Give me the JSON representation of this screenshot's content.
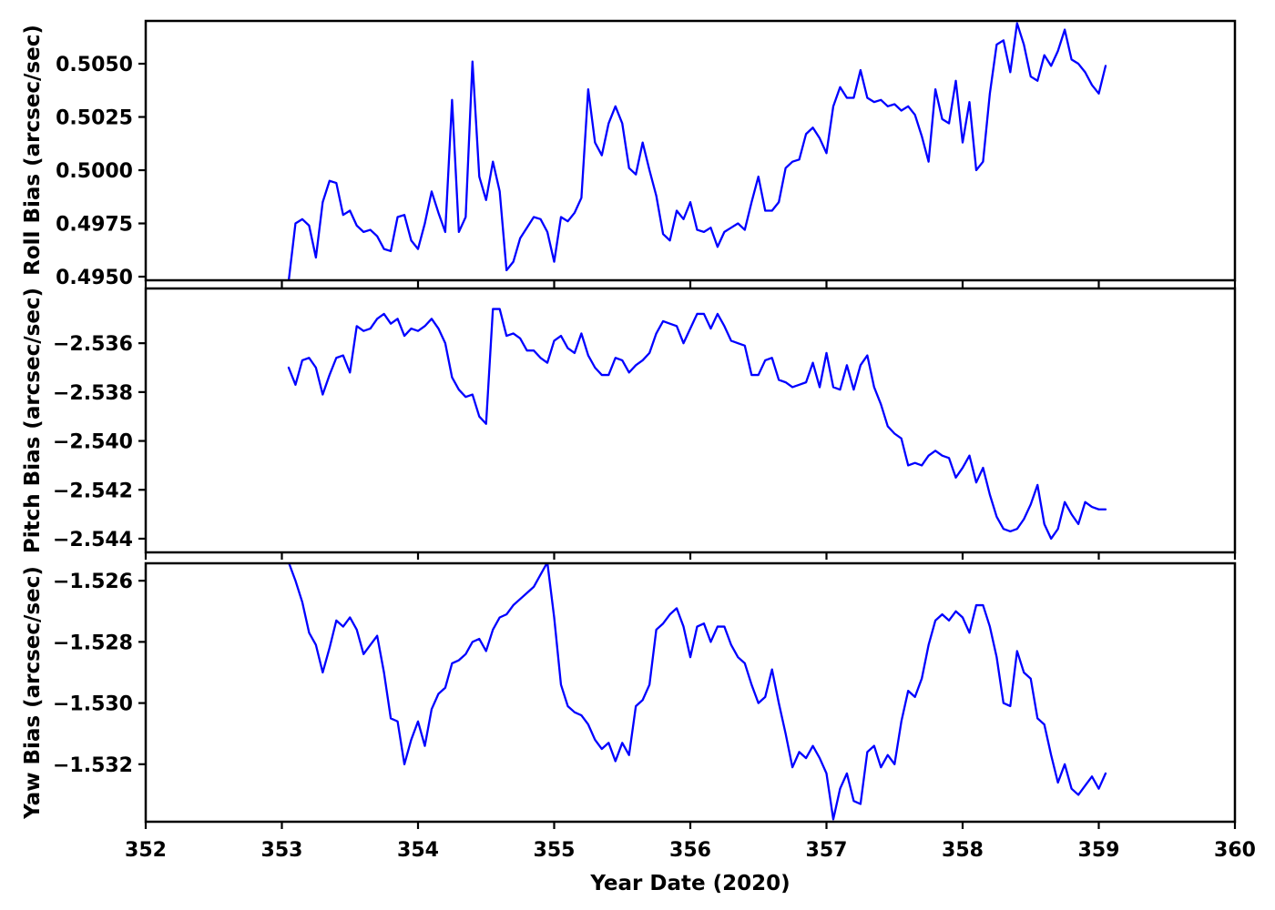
{
  "chart_data": {
    "type": "line",
    "title": "",
    "x_label": "Year Date (2020)",
    "xlim": [
      352,
      360
    ],
    "x_ticks": [
      352,
      353,
      354,
      355,
      356,
      357,
      358,
      359,
      360
    ],
    "x_tick_labels": [
      "352",
      "353",
      "354",
      "355",
      "356",
      "357",
      "358",
      "359",
      "360"
    ],
    "grid": false,
    "legend": "none",
    "line_color": "#0000ff",
    "axis_color": "#000000",
    "background_color": "#ffffff",
    "x": [
      353.05,
      353.1,
      353.15,
      353.2,
      353.25,
      353.3,
      353.35,
      353.4,
      353.45,
      353.5,
      353.55,
      353.6,
      353.65,
      353.7,
      353.75,
      353.8,
      353.85,
      353.9,
      353.95,
      354.0,
      354.05,
      354.1,
      354.15,
      354.2,
      354.25,
      354.3,
      354.35,
      354.4,
      354.45,
      354.5,
      354.55,
      354.6,
      354.65,
      354.7,
      354.75,
      354.8,
      354.85,
      354.9,
      354.95,
      355.0,
      355.05,
      355.1,
      355.15,
      355.2,
      355.25,
      355.3,
      355.35,
      355.4,
      355.45,
      355.5,
      355.55,
      355.6,
      355.65,
      355.7,
      355.75,
      355.8,
      355.85,
      355.9,
      355.95,
      356.0,
      356.05,
      356.1,
      356.15,
      356.2,
      356.25,
      356.3,
      356.35,
      356.4,
      356.45,
      356.5,
      356.55,
      356.6,
      356.65,
      356.7,
      356.75,
      356.8,
      356.85,
      356.9,
      356.95,
      357.0,
      357.05,
      357.1,
      357.15,
      357.2,
      357.25,
      357.3,
      357.35,
      357.4,
      357.45,
      357.5,
      357.55,
      357.6,
      357.65,
      357.7,
      357.75,
      357.8,
      357.85,
      357.9,
      357.95,
      358.0,
      358.05,
      358.1,
      358.15,
      358.2,
      358.25,
      358.3,
      358.35,
      358.4,
      358.45,
      358.5,
      358.55,
      358.6,
      358.65,
      358.7,
      358.75,
      358.8,
      358.85,
      358.9,
      358.95,
      359.0,
      359.05
    ],
    "panels": [
      {
        "id": "roll",
        "ylabel": "Roll Bias (arcsec/sec)",
        "ylim": [
          0.49483,
          0.50701
        ],
        "y_ticks": [
          0.505,
          0.5025,
          0.5,
          0.4975,
          0.495
        ],
        "y_tick_labels": [
          "0.5050",
          "0.5025",
          "0.5000",
          "0.4975",
          "0.4950"
        ],
        "values": [
          0.4948,
          0.4975,
          0.4977,
          0.4974,
          0.4959,
          0.4985,
          0.4995,
          0.4994,
          0.4979,
          0.4981,
          0.4974,
          0.4971,
          0.4972,
          0.4969,
          0.4963,
          0.4962,
          0.4978,
          0.4979,
          0.4967,
          0.4963,
          0.4975,
          0.499,
          0.498,
          0.4971,
          0.5033,
          0.4971,
          0.4978,
          0.5051,
          0.4997,
          0.4986,
          0.5004,
          0.499,
          0.4953,
          0.4957,
          0.4968,
          0.4973,
          0.4978,
          0.4977,
          0.4971,
          0.4957,
          0.4978,
          0.4976,
          0.498,
          0.4987,
          0.5038,
          0.5013,
          0.5007,
          0.5022,
          0.503,
          0.5022,
          0.5001,
          0.4998,
          0.5013,
          0.5,
          0.4988,
          0.497,
          0.4967,
          0.4981,
          0.4977,
          0.4985,
          0.4972,
          0.4971,
          0.4973,
          0.4964,
          0.4971,
          0.4973,
          0.4975,
          0.4972,
          0.4985,
          0.4997,
          0.4981,
          0.4981,
          0.4985,
          0.5001,
          0.5004,
          0.5005,
          0.5017,
          0.502,
          0.5015,
          0.5008,
          0.503,
          0.5039,
          0.5034,
          0.5034,
          0.5047,
          0.5034,
          0.5032,
          0.5033,
          0.503,
          0.5031,
          0.5028,
          0.503,
          0.5026,
          0.5016,
          0.5004,
          0.5038,
          0.5024,
          0.5022,
          0.5042,
          0.5013,
          0.5032,
          0.5,
          0.5004,
          0.5036,
          0.5059,
          0.5061,
          0.5046,
          0.5069,
          0.5059,
          0.5044,
          0.5042,
          0.5054,
          0.5049,
          0.5056,
          0.5066,
          0.5052,
          0.505,
          0.5046,
          0.504,
          0.5036,
          0.5049
        ]
      },
      {
        "id": "pitch",
        "ylabel": "Pitch Bias (arcsec/sec)",
        "ylim": [
          -2.54456,
          -2.53376
        ],
        "y_ticks": [
          -2.536,
          -2.538,
          -2.54,
          -2.542,
          -2.544
        ],
        "y_tick_labels": [
          "−2.536",
          "−2.538",
          "−2.540",
          "−2.542",
          "−2.544"
        ],
        "values": [
          -2.537,
          -2.5377,
          -2.5367,
          -2.5366,
          -2.537,
          -2.5381,
          -2.5373,
          -2.5366,
          -2.5365,
          -2.5372,
          -2.5353,
          -2.5355,
          -2.5354,
          -2.535,
          -2.5348,
          -2.5352,
          -2.535,
          -2.5357,
          -2.5354,
          -2.5355,
          -2.5353,
          -2.535,
          -2.5354,
          -2.536,
          -2.5374,
          -2.5379,
          -2.5382,
          -2.5381,
          -2.539,
          -2.5393,
          -2.5346,
          -2.5346,
          -2.5357,
          -2.5356,
          -2.5358,
          -2.5363,
          -2.5363,
          -2.5366,
          -2.5368,
          -2.5359,
          -2.5357,
          -2.5362,
          -2.5364,
          -2.5356,
          -2.5365,
          -2.537,
          -2.5373,
          -2.5373,
          -2.5366,
          -2.5367,
          -2.5372,
          -2.5369,
          -2.5367,
          -2.5364,
          -2.5356,
          -2.5351,
          -2.5352,
          -2.5353,
          -2.536,
          -2.5354,
          -2.5348,
          -2.5348,
          -2.5354,
          -2.5348,
          -2.5353,
          -2.5359,
          -2.536,
          -2.5361,
          -2.5373,
          -2.5373,
          -2.5367,
          -2.5366,
          -2.5375,
          -2.5376,
          -2.5378,
          -2.5377,
          -2.5376,
          -2.5368,
          -2.5378,
          -2.5364,
          -2.5378,
          -2.5379,
          -2.5369,
          -2.5379,
          -2.5369,
          -2.5365,
          -2.5378,
          -2.5385,
          -2.5394,
          -2.5397,
          -2.5399,
          -2.541,
          -2.5409,
          -2.541,
          -2.5406,
          -2.5404,
          -2.5406,
          -2.5407,
          -2.5415,
          -2.5411,
          -2.5406,
          -2.5417,
          -2.5411,
          -2.5422,
          -2.5431,
          -2.5436,
          -2.5437,
          -2.5436,
          -2.5432,
          -2.5426,
          -2.5418,
          -2.5434,
          -2.544,
          -2.5436,
          -2.5425,
          -2.543,
          -2.5434,
          -2.5425,
          -2.5427,
          -2.5428,
          -2.5428
        ]
      },
      {
        "id": "yaw",
        "ylabel": "Yaw Bias (arcsec/sec)",
        "ylim": [
          -1.53388,
          -1.52543
        ],
        "y_ticks": [
          -1.526,
          -1.528,
          -1.53,
          -1.532
        ],
        "y_tick_labels": [
          "−1.526",
          "−1.528",
          "−1.530",
          "−1.532"
        ],
        "values": [
          -1.5254,
          -1.526,
          -1.5267,
          -1.5277,
          -1.5281,
          -1.529,
          -1.5282,
          -1.5273,
          -1.5275,
          -1.5272,
          -1.5276,
          -1.5284,
          -1.5281,
          -1.5278,
          -1.529,
          -1.5305,
          -1.5306,
          -1.532,
          -1.5312,
          -1.5306,
          -1.5314,
          -1.5302,
          -1.5297,
          -1.5295,
          -1.5287,
          -1.5286,
          -1.5284,
          -1.528,
          -1.5279,
          -1.5283,
          -1.5276,
          -1.5272,
          -1.5271,
          -1.5268,
          -1.5266,
          -1.5264,
          -1.5262,
          -1.5258,
          -1.5254,
          -1.5272,
          -1.5294,
          -1.5301,
          -1.5303,
          -1.5304,
          -1.5307,
          -1.5312,
          -1.5315,
          -1.5313,
          -1.5319,
          -1.5313,
          -1.5317,
          -1.5301,
          -1.5299,
          -1.5294,
          -1.5276,
          -1.5274,
          -1.5271,
          -1.5269,
          -1.5275,
          -1.5285,
          -1.5275,
          -1.5274,
          -1.528,
          -1.5275,
          -1.5275,
          -1.5281,
          -1.5285,
          -1.5287,
          -1.5294,
          -1.53,
          -1.5298,
          -1.5289,
          -1.53,
          -1.531,
          -1.5321,
          -1.5316,
          -1.5318,
          -1.5314,
          -1.5318,
          -1.5323,
          -1.5338,
          -1.5328,
          -1.5323,
          -1.5332,
          -1.5333,
          -1.5316,
          -1.5314,
          -1.5321,
          -1.5317,
          -1.532,
          -1.5306,
          -1.5296,
          -1.5298,
          -1.5292,
          -1.5281,
          -1.5273,
          -1.5271,
          -1.5273,
          -1.527,
          -1.5272,
          -1.5277,
          -1.5268,
          -1.5268,
          -1.5275,
          -1.5285,
          -1.53,
          -1.5301,
          -1.5283,
          -1.529,
          -1.5292,
          -1.5305,
          -1.5307,
          -1.5317,
          -1.5326,
          -1.532,
          -1.5328,
          -1.533,
          -1.5327,
          -1.5324,
          -1.5328,
          -1.5323
        ]
      }
    ]
  }
}
